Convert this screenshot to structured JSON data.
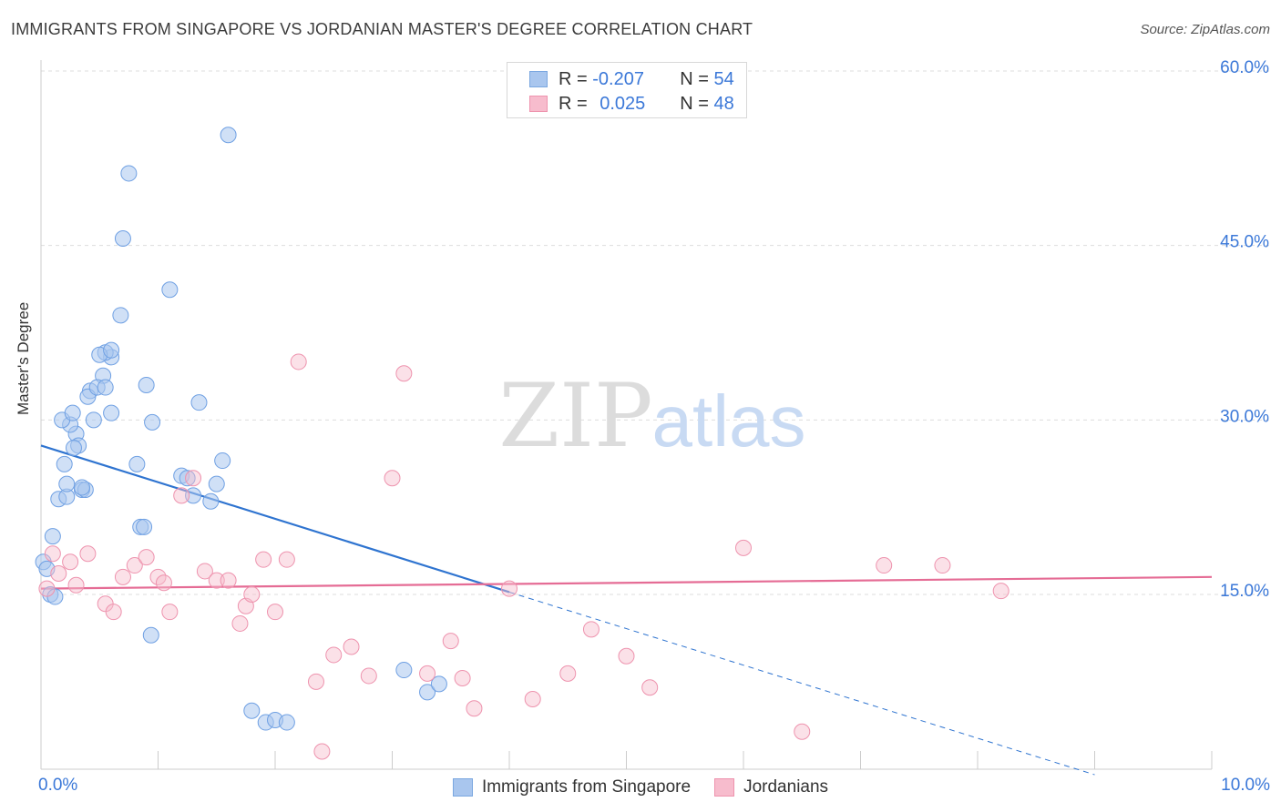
{
  "title": "IMMIGRANTS FROM SINGAPORE VS JORDANIAN MASTER'S DEGREE CORRELATION CHART",
  "source": "Source: ZipAtlas.com",
  "watermark": {
    "zip": "ZIP",
    "atlas": "atlas"
  },
  "legend_stats": [
    {
      "r_label": "R =",
      "r_value": "-0.207",
      "n_label": "N =",
      "n_value": "54",
      "color": "#a9c6ee",
      "border": "#7aa7e0"
    },
    {
      "r_label": "R =",
      "r_value": "0.025",
      "n_label": "N =",
      "n_value": "48",
      "color": "#f7bccd",
      "border": "#ee93ae"
    }
  ],
  "legend_series": [
    {
      "name": "Immigrants from Singapore",
      "color": "#a9c6ee",
      "border": "#7aa7e0"
    },
    {
      "name": "Jordanians",
      "color": "#f7bccd",
      "border": "#ee93ae"
    }
  ],
  "chart_data": {
    "type": "scatter",
    "title": "IMMIGRANTS FROM SINGAPORE VS JORDANIAN MASTER'S DEGREE CORRELATION CHART",
    "xlabel": "",
    "ylabel": "Master's Degree",
    "xlim": [
      0,
      10
    ],
    "ylim": [
      0,
      60
    ],
    "x_tick_labels": [
      "0.0%",
      "10.0%"
    ],
    "y_tick_labels": [
      "15.0%",
      "30.0%",
      "45.0%",
      "60.0%"
    ],
    "y_ticks": [
      15,
      30,
      45,
      60
    ],
    "grid": true,
    "legend_position": "top-center and bottom",
    "series": [
      {
        "name": "Immigrants from Singapore",
        "color": "#6fa0e3",
        "x": [
          0.02,
          0.05,
          0.1,
          0.15,
          0.2,
          0.22,
          0.3,
          0.35,
          0.38,
          0.25,
          0.18,
          0.27,
          0.45,
          0.32,
          0.42,
          0.53,
          0.6,
          0.08,
          0.12,
          0.22,
          0.28,
          0.35,
          0.4,
          0.48,
          0.55,
          0.6,
          0.68,
          0.82,
          0.85,
          0.88,
          0.94,
          1.1,
          1.2,
          1.3,
          1.35,
          0.9,
          0.55,
          0.7,
          0.75,
          0.5,
          0.6,
          0.95,
          1.25,
          1.5,
          1.45,
          1.55,
          1.6,
          1.8,
          1.92,
          2.0,
          2.1,
          3.1,
          3.3,
          3.4
        ],
        "y": [
          17.8,
          17.2,
          20.0,
          23.2,
          26.2,
          23.4,
          28.8,
          24.0,
          24.0,
          29.6,
          30.0,
          30.6,
          30.0,
          27.8,
          32.5,
          33.8,
          35.4,
          15.0,
          14.8,
          24.5,
          27.6,
          24.2,
          32.0,
          32.8,
          32.8,
          30.6,
          39.0,
          26.2,
          20.8,
          20.8,
          11.5,
          41.2,
          25.2,
          23.5,
          31.5,
          33.0,
          35.8,
          45.6,
          51.2,
          35.6,
          36.0,
          29.8,
          25.0,
          24.5,
          23.0,
          26.5,
          54.5,
          5.0,
          4.0,
          4.2,
          4.0,
          8.5,
          6.6,
          7.3
        ]
      },
      {
        "name": "Jordanians",
        "color": "#f08aab",
        "x": [
          0.05,
          0.1,
          0.15,
          0.25,
          0.3,
          0.4,
          0.55,
          0.62,
          0.7,
          0.8,
          0.9,
          1.0,
          1.05,
          1.1,
          1.2,
          1.3,
          1.4,
          1.5,
          1.6,
          1.7,
          1.75,
          1.8,
          1.9,
          2.0,
          2.1,
          2.2,
          2.35,
          2.4,
          2.5,
          2.65,
          2.8,
          3.0,
          3.1,
          3.3,
          3.5,
          3.6,
          3.7,
          4.0,
          4.2,
          4.5,
          4.7,
          5.0,
          5.2,
          6.0,
          6.5,
          7.2,
          7.7,
          8.2
        ],
        "y": [
          15.5,
          18.5,
          16.8,
          17.8,
          15.8,
          18.5,
          14.2,
          13.5,
          16.5,
          17.5,
          18.2,
          16.5,
          16.0,
          13.5,
          23.5,
          25.0,
          17.0,
          16.2,
          16.2,
          12.5,
          14.0,
          15.0,
          18.0,
          13.5,
          18.0,
          35.0,
          7.5,
          1.5,
          9.8,
          10.5,
          8.0,
          25.0,
          34.0,
          8.2,
          11.0,
          7.8,
          5.2,
          15.5,
          6.0,
          8.2,
          12.0,
          9.7,
          7.0,
          19.0,
          3.2,
          17.5,
          17.5,
          15.3
        ]
      }
    ],
    "trend_lines": [
      {
        "series": "Immigrants from Singapore",
        "x": [
          0,
          4.0
        ],
        "y": [
          27.8,
          15.2
        ],
        "extension_x": [
          4.0,
          9.0
        ],
        "extension_y": [
          15.2,
          -0.5
        ]
      },
      {
        "series": "Jordanians",
        "x": [
          0,
          10
        ],
        "y": [
          15.5,
          16.5
        ]
      }
    ]
  }
}
